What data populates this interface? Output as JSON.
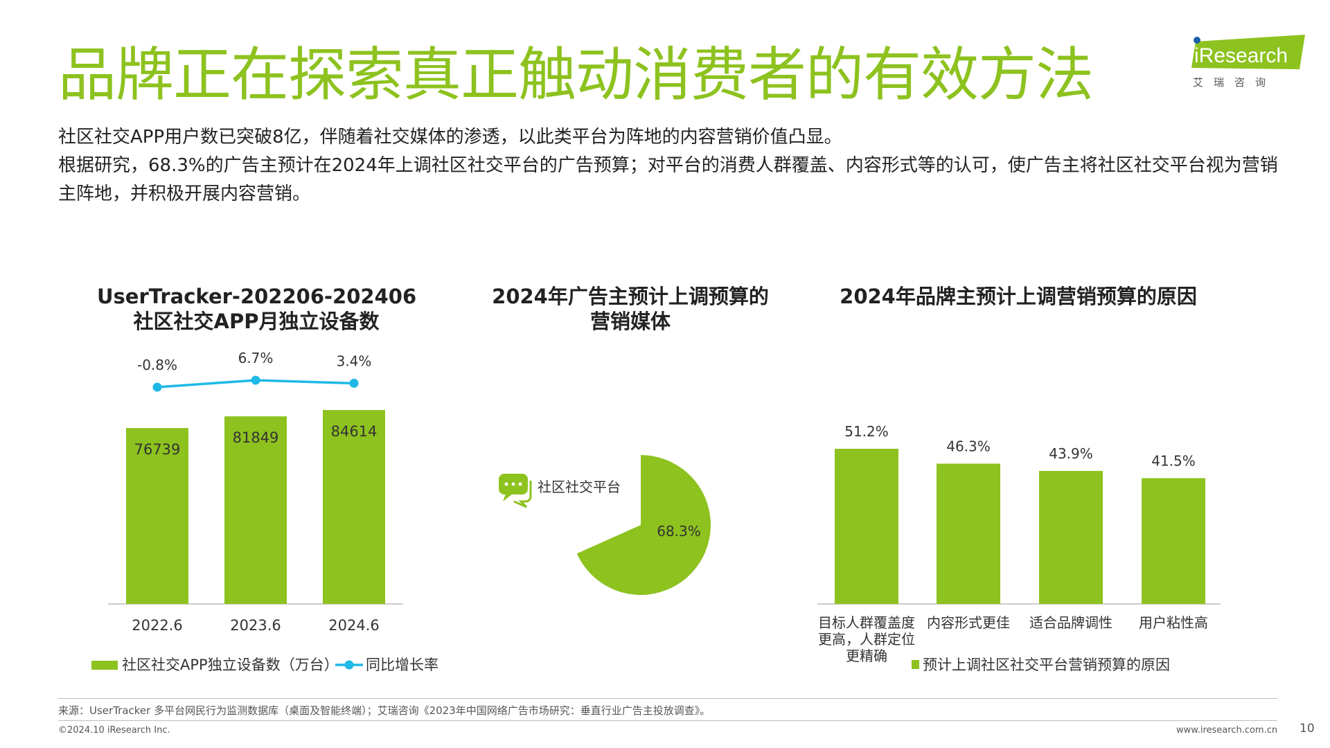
{
  "header": {
    "title": "品牌正在探索真正触动消费者的有效方法",
    "intro": [
      "社区社交APP用户数已突破8亿，伴随着社交媒体的渗透，以此类平台为阵地的内容营销价值凸显。",
      "根据研究，68.3%的广告主预计在2024年上调社区社交平台的广告预算；对平台的消费人群覆盖、内容形式等的认可，使广告主将社区社交平台视为营销主阵地，并积极开展内容营销。"
    ]
  },
  "logo": {
    "brand": "iResearch",
    "subtitle": "艾 瑞 咨 询",
    "color": "#8dc21f"
  },
  "colors": {
    "accent": "#8dc21f",
    "line": "#1eb9e6"
  },
  "chart_data": [
    {
      "type": "bar",
      "title": [
        "UserTracker-202206-202406",
        "社区社交APP月独立设备数"
      ],
      "categories": [
        "2022.6",
        "2023.6",
        "2024.6"
      ],
      "series": [
        {
          "name": "社区社交APP独立设备数（万台）",
          "type": "bar",
          "values": [
            76739,
            81849,
            84614
          ]
        },
        {
          "name": "同比增长率",
          "type": "line",
          "values": [
            -0.8,
            6.7,
            3.4
          ],
          "labels": [
            "-0.8%",
            "6.7%",
            "3.4%"
          ]
        }
      ],
      "legend": "bottom"
    },
    {
      "type": "pie",
      "title": [
        "2024年广告主预计上调预算的",
        "营销媒体"
      ],
      "slices": [
        {
          "name": "社区社交平台",
          "value": 68.3,
          "label": "68.3%"
        }
      ],
      "legend": "left"
    },
    {
      "type": "bar",
      "title": [
        "2024年品牌主预计上调营销预算的原因"
      ],
      "categories": [
        [
          "目标人群覆盖度",
          "更高，人群定位",
          "更精确"
        ],
        [
          "内容形式更佳"
        ],
        [
          "适合品牌调性"
        ],
        [
          "用户粘性高"
        ]
      ],
      "series": [
        {
          "name": "预计上调社区社交平台营销预算的原因",
          "values": [
            51.2,
            46.3,
            43.9,
            41.5
          ],
          "labels": [
            "51.2%",
            "46.3%",
            "43.9%",
            "41.5%"
          ]
        }
      ],
      "legend": "bottom"
    }
  ],
  "footer": {
    "source": "来源：UserTracker 多平台网民行为监测数据库（桌面及智能终端）；艾瑞咨询《2023年中国网络广告市场研究：垂直行业广告主投放调查》。",
    "copyright": "©2024.10 iResearch Inc.",
    "website": "www.iresearch.com.cn",
    "page": "10"
  }
}
